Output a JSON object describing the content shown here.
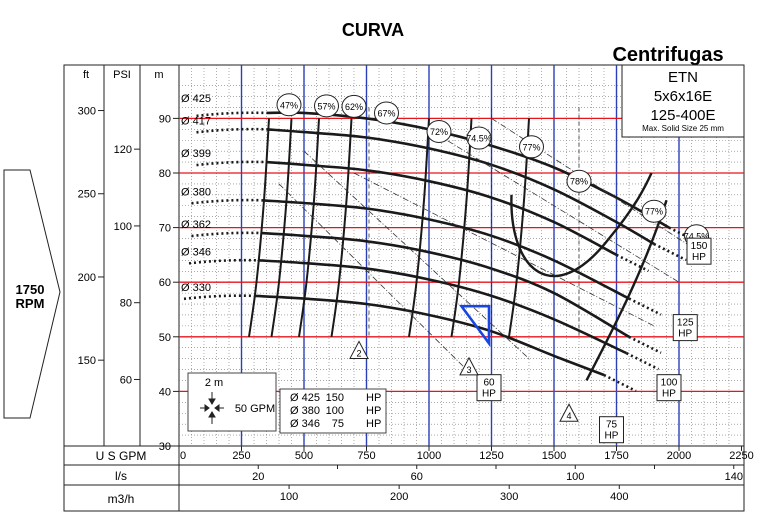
{
  "title": "CURVA",
  "brand": "Centrifugas",
  "pump": {
    "line1": "ETN",
    "line2": "5x6x16E",
    "line3": "125-400E",
    "solid": "Max. Solid  Size 25 mm"
  },
  "speed": {
    "value": "1750",
    "unit": "RPM"
  },
  "axes": {
    "ft_label": "ft",
    "psi_label": "PSI",
    "m_label": "m",
    "ft_ticks": [
      "300",
      "250",
      "200",
      "150"
    ],
    "psi_ticks": [
      "120",
      "100",
      "80",
      "60"
    ],
    "m_ticks": [
      "90",
      "80",
      "70",
      "60",
      "50",
      "40",
      "30"
    ],
    "usgpm_label": "U S GPM",
    "usgpm_ticks": [
      "0",
      "250",
      "500",
      "750",
      "1000",
      "1250",
      "1500",
      "1750",
      "2000",
      "2250"
    ],
    "ls_label": "l/s",
    "ls_ticks": [
      "20",
      "60",
      "100",
      "140"
    ],
    "m3h_label": "m3/h",
    "m3h_ticks": [
      "100",
      "200",
      "300",
      "400"
    ]
  },
  "legend": {
    "scale_top": "2 m",
    "scale_right": "50 GPM",
    "rows": [
      {
        "d": "Ø 425",
        "p": "150",
        "u": "HP"
      },
      {
        "d": "Ø 380",
        "p": "100",
        "u": "HP"
      },
      {
        "d": "Ø 346",
        "p": "75",
        "u": "HP"
      }
    ]
  },
  "colors": {
    "red_grid": "#e8141b",
    "blue_grid": "#2b3fb8",
    "curve": "#1a1a1a",
    "marker": "#1746e0"
  },
  "chart_data": {
    "type": "line",
    "title": "CURVA",
    "xlabel": "U S GPM",
    "ylabel": "m",
    "xlim": [
      0,
      2250
    ],
    "ylim": [
      30,
      95
    ],
    "grid": true,
    "series": [
      {
        "name": "Ø 425",
        "x": [
          350,
          500,
          750,
          1000,
          1250,
          1500,
          1750,
          1960
        ],
        "y": [
          91,
          91,
          90,
          88,
          85,
          81,
          75.5,
          70
        ]
      },
      {
        "name": "Ø 417",
        "x": [
          350,
          500,
          750,
          1000,
          1250,
          1500,
          1750,
          1900
        ],
        "y": [
          88,
          87.5,
          86.5,
          84.5,
          81.5,
          77,
          71,
          67
        ]
      },
      {
        "name": "Ø 399",
        "x": [
          350,
          500,
          750,
          1000,
          1250,
          1500,
          1750
        ],
        "y": [
          82,
          81.5,
          80.5,
          78.5,
          75.5,
          71,
          65
        ]
      },
      {
        "name": "Ø 380",
        "x": [
          330,
          500,
          750,
          1000,
          1250,
          1500,
          1800
        ],
        "y": [
          75,
          74.5,
          73.5,
          71.5,
          68.5,
          64,
          57
        ]
      },
      {
        "name": "Ø 362",
        "x": [
          330,
          500,
          750,
          1000,
          1250,
          1500,
          1800
        ],
        "y": [
          69,
          68.5,
          67.5,
          65.5,
          62.5,
          58,
          50
        ]
      },
      {
        "name": "Ø 346",
        "x": [
          320,
          500,
          750,
          1000,
          1250,
          1500,
          1790
        ],
        "y": [
          64,
          63.5,
          62.5,
          60.5,
          57.5,
          53.2,
          47
        ]
      },
      {
        "name": "Ø 330",
        "x": [
          300,
          500,
          750,
          1000,
          1250,
          1500,
          1700
        ],
        "y": [
          57.5,
          57,
          56,
          54,
          51,
          46.5,
          43
        ]
      }
    ],
    "efficiency_labels": [
      "47%",
      "57%",
      "62%",
      "67%",
      "72%",
      "74.5%",
      "77%",
      "78%",
      "77%",
      "74.5%"
    ],
    "power_labels": [
      "150 HP",
      "125 HP",
      "100 HP",
      "75 HP",
      "60 HP"
    ],
    "npsh_labels": [
      "2",
      "3",
      "4"
    ]
  }
}
